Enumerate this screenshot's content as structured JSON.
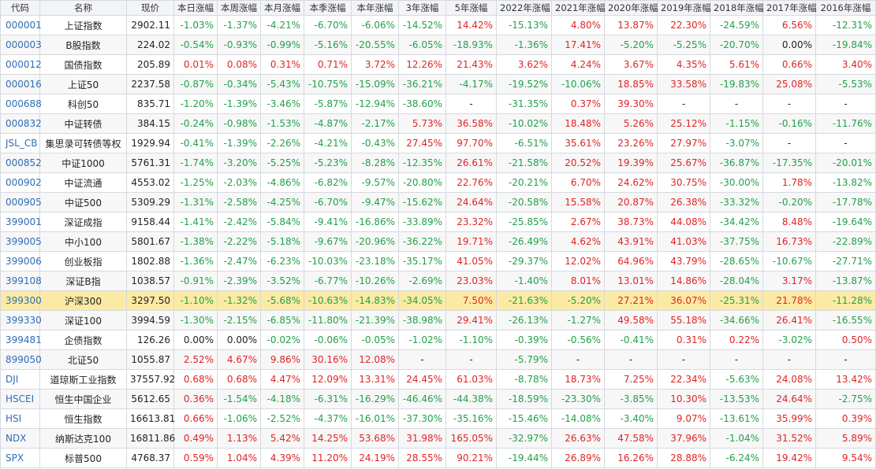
{
  "columns": [
    "代码",
    "名称",
    "现价",
    "本日涨幅",
    "本周涨幅",
    "本月涨幅",
    "本季涨幅",
    "本年涨幅",
    "3年涨幅",
    "5年涨幅",
    "2022年涨幅",
    "2021年涨幅",
    "2020年涨幅",
    "2019年涨幅",
    "2018年涨幅",
    "2017年涨幅",
    "2016年涨幅"
  ],
  "highlight_code": "399300",
  "colors": {
    "positive": "#e02424",
    "negative": "#22a14a",
    "highlight": "#fbeaa4",
    "code": "#2f6db3"
  },
  "rows": [
    [
      "000001",
      "上证指数",
      "2902.11",
      "-1.03%",
      "-1.37%",
      "-4.21%",
      "-6.70%",
      "-6.06%",
      "-14.52%",
      "14.42%",
      "-15.13%",
      "4.80%",
      "13.87%",
      "22.30%",
      "-24.59%",
      "6.56%",
      "-12.31%"
    ],
    [
      "000003",
      "B股指数",
      "224.02",
      "-0.54%",
      "-0.93%",
      "-0.99%",
      "-5.16%",
      "-20.55%",
      "-6.05%",
      "-18.93%",
      "-1.36%",
      "17.41%",
      "-5.20%",
      "-5.25%",
      "-20.70%",
      "0.00%",
      "-19.84%"
    ],
    [
      "000012",
      "国债指数",
      "205.89",
      "0.01%",
      "0.08%",
      "0.31%",
      "0.71%",
      "3.72%",
      "12.26%",
      "21.43%",
      "3.62%",
      "4.24%",
      "3.67%",
      "4.35%",
      "5.61%",
      "0.66%",
      "3.40%"
    ],
    [
      "000016",
      "上证50",
      "2237.58",
      "-0.87%",
      "-0.34%",
      "-5.43%",
      "-10.75%",
      "-15.09%",
      "-36.21%",
      "-4.17%",
      "-19.52%",
      "-10.06%",
      "18.85%",
      "33.58%",
      "-19.83%",
      "25.08%",
      "-5.53%"
    ],
    [
      "000688",
      "科创50",
      "835.71",
      "-1.20%",
      "-1.39%",
      "-3.46%",
      "-5.87%",
      "-12.94%",
      "-38.60%",
      "-",
      "-31.35%",
      "0.37%",
      "39.30%",
      "-",
      "-",
      "-",
      "-"
    ],
    [
      "000832",
      "中证转债",
      "384.15",
      "-0.24%",
      "-0.98%",
      "-1.53%",
      "-4.87%",
      "-2.17%",
      "5.73%",
      "36.58%",
      "-10.02%",
      "18.48%",
      "5.26%",
      "25.12%",
      "-1.15%",
      "-0.16%",
      "-11.76%"
    ],
    [
      "JSL_CB",
      "集思录可转债等权",
      "1929.94",
      "-0.41%",
      "-1.39%",
      "-2.26%",
      "-4.21%",
      "-0.43%",
      "27.45%",
      "97.70%",
      "-6.51%",
      "35.61%",
      "23.26%",
      "27.97%",
      "-3.07%",
      "-",
      "-"
    ],
    [
      "000852",
      "中证1000",
      "5761.31",
      "-1.74%",
      "-3.20%",
      "-5.25%",
      "-5.23%",
      "-8.28%",
      "-12.35%",
      "26.61%",
      "-21.58%",
      "20.52%",
      "19.39%",
      "25.67%",
      "-36.87%",
      "-17.35%",
      "-20.01%"
    ],
    [
      "000902",
      "中证流通",
      "4553.02",
      "-1.25%",
      "-2.03%",
      "-4.86%",
      "-6.82%",
      "-9.57%",
      "-20.80%",
      "22.76%",
      "-20.21%",
      "6.70%",
      "24.62%",
      "30.75%",
      "-30.00%",
      "1.78%",
      "-13.82%"
    ],
    [
      "000905",
      "中证500",
      "5309.29",
      "-1.31%",
      "-2.58%",
      "-4.25%",
      "-6.70%",
      "-9.47%",
      "-15.62%",
      "24.64%",
      "-20.58%",
      "15.58%",
      "20.87%",
      "26.38%",
      "-33.32%",
      "-0.20%",
      "-17.78%"
    ],
    [
      "399001",
      "深证成指",
      "9158.44",
      "-1.41%",
      "-2.42%",
      "-5.84%",
      "-9.41%",
      "-16.86%",
      "-33.89%",
      "23.32%",
      "-25.85%",
      "2.67%",
      "38.73%",
      "44.08%",
      "-34.42%",
      "8.48%",
      "-19.64%"
    ],
    [
      "399005",
      "中小100",
      "5801.67",
      "-1.38%",
      "-2.22%",
      "-5.18%",
      "-9.67%",
      "-20.96%",
      "-36.22%",
      "19.71%",
      "-26.49%",
      "4.62%",
      "43.91%",
      "41.03%",
      "-37.75%",
      "16.73%",
      "-22.89%"
    ],
    [
      "399006",
      "创业板指",
      "1802.88",
      "-1.36%",
      "-2.47%",
      "-6.23%",
      "-10.03%",
      "-23.18%",
      "-35.17%",
      "41.05%",
      "-29.37%",
      "12.02%",
      "64.96%",
      "43.79%",
      "-28.65%",
      "-10.67%",
      "-27.71%"
    ],
    [
      "399108",
      "深证B指",
      "1038.57",
      "-0.91%",
      "-2.39%",
      "-3.52%",
      "-6.77%",
      "-10.26%",
      "-2.69%",
      "23.03%",
      "-1.40%",
      "8.01%",
      "13.01%",
      "14.86%",
      "-28.04%",
      "3.17%",
      "-13.87%"
    ],
    [
      "399300",
      "沪深300",
      "3297.50",
      "-1.10%",
      "-1.32%",
      "-5.68%",
      "-10.63%",
      "-14.83%",
      "-34.05%",
      "7.50%",
      "-21.63%",
      "-5.20%",
      "27.21%",
      "36.07%",
      "-25.31%",
      "21.78%",
      "-11.28%"
    ],
    [
      "399330",
      "深证100",
      "3994.59",
      "-1.30%",
      "-2.15%",
      "-6.85%",
      "-11.80%",
      "-21.39%",
      "-38.98%",
      "29.41%",
      "-26.13%",
      "-1.27%",
      "49.58%",
      "55.18%",
      "-34.66%",
      "26.41%",
      "-16.55%"
    ],
    [
      "399481",
      "企债指数",
      "126.26",
      "0.00%",
      "0.00%",
      "-0.02%",
      "-0.06%",
      "-0.05%",
      "-1.02%",
      "-1.10%",
      "-0.39%",
      "-0.56%",
      "-0.41%",
      "0.31%",
      "0.22%",
      "-3.02%",
      "0.50%"
    ],
    [
      "899050",
      "北证50",
      "1055.87",
      "2.52%",
      "4.67%",
      "9.86%",
      "30.16%",
      "12.08%",
      "-",
      "-",
      "-5.79%",
      "-",
      "-",
      "-",
      "-",
      "-",
      "-"
    ],
    [
      "DJI",
      "道琼斯工业指数",
      "37557.92",
      "0.68%",
      "0.68%",
      "4.47%",
      "12.09%",
      "13.31%",
      "24.45%",
      "61.03%",
      "-8.78%",
      "18.73%",
      "7.25%",
      "22.34%",
      "-5.63%",
      "24.08%",
      "13.42%"
    ],
    [
      "HSCEI",
      "恒生中国企业",
      "5612.65",
      "0.36%",
      "-1.54%",
      "-4.18%",
      "-6.31%",
      "-16.29%",
      "-46.46%",
      "-44.38%",
      "-18.59%",
      "-23.30%",
      "-3.85%",
      "10.30%",
      "-13.53%",
      "24.64%",
      "-2.75%"
    ],
    [
      "HSI",
      "恒生指数",
      "16613.81",
      "0.66%",
      "-1.06%",
      "-2.52%",
      "-4.37%",
      "-16.01%",
      "-37.30%",
      "-35.16%",
      "-15.46%",
      "-14.08%",
      "-3.40%",
      "9.07%",
      "-13.61%",
      "35.99%",
      "0.39%"
    ],
    [
      "NDX",
      "纳斯达克100",
      "16811.86",
      "0.49%",
      "1.13%",
      "5.42%",
      "14.25%",
      "53.68%",
      "31.98%",
      "165.05%",
      "-32.97%",
      "26.63%",
      "47.58%",
      "37.96%",
      "-1.04%",
      "31.52%",
      "5.89%"
    ],
    [
      "SPX",
      "标普500",
      "4768.37",
      "0.59%",
      "1.04%",
      "4.39%",
      "11.20%",
      "24.19%",
      "28.55%",
      "90.21%",
      "-19.44%",
      "26.89%",
      "16.26%",
      "28.88%",
      "-6.24%",
      "19.42%",
      "9.54%"
    ]
  ]
}
